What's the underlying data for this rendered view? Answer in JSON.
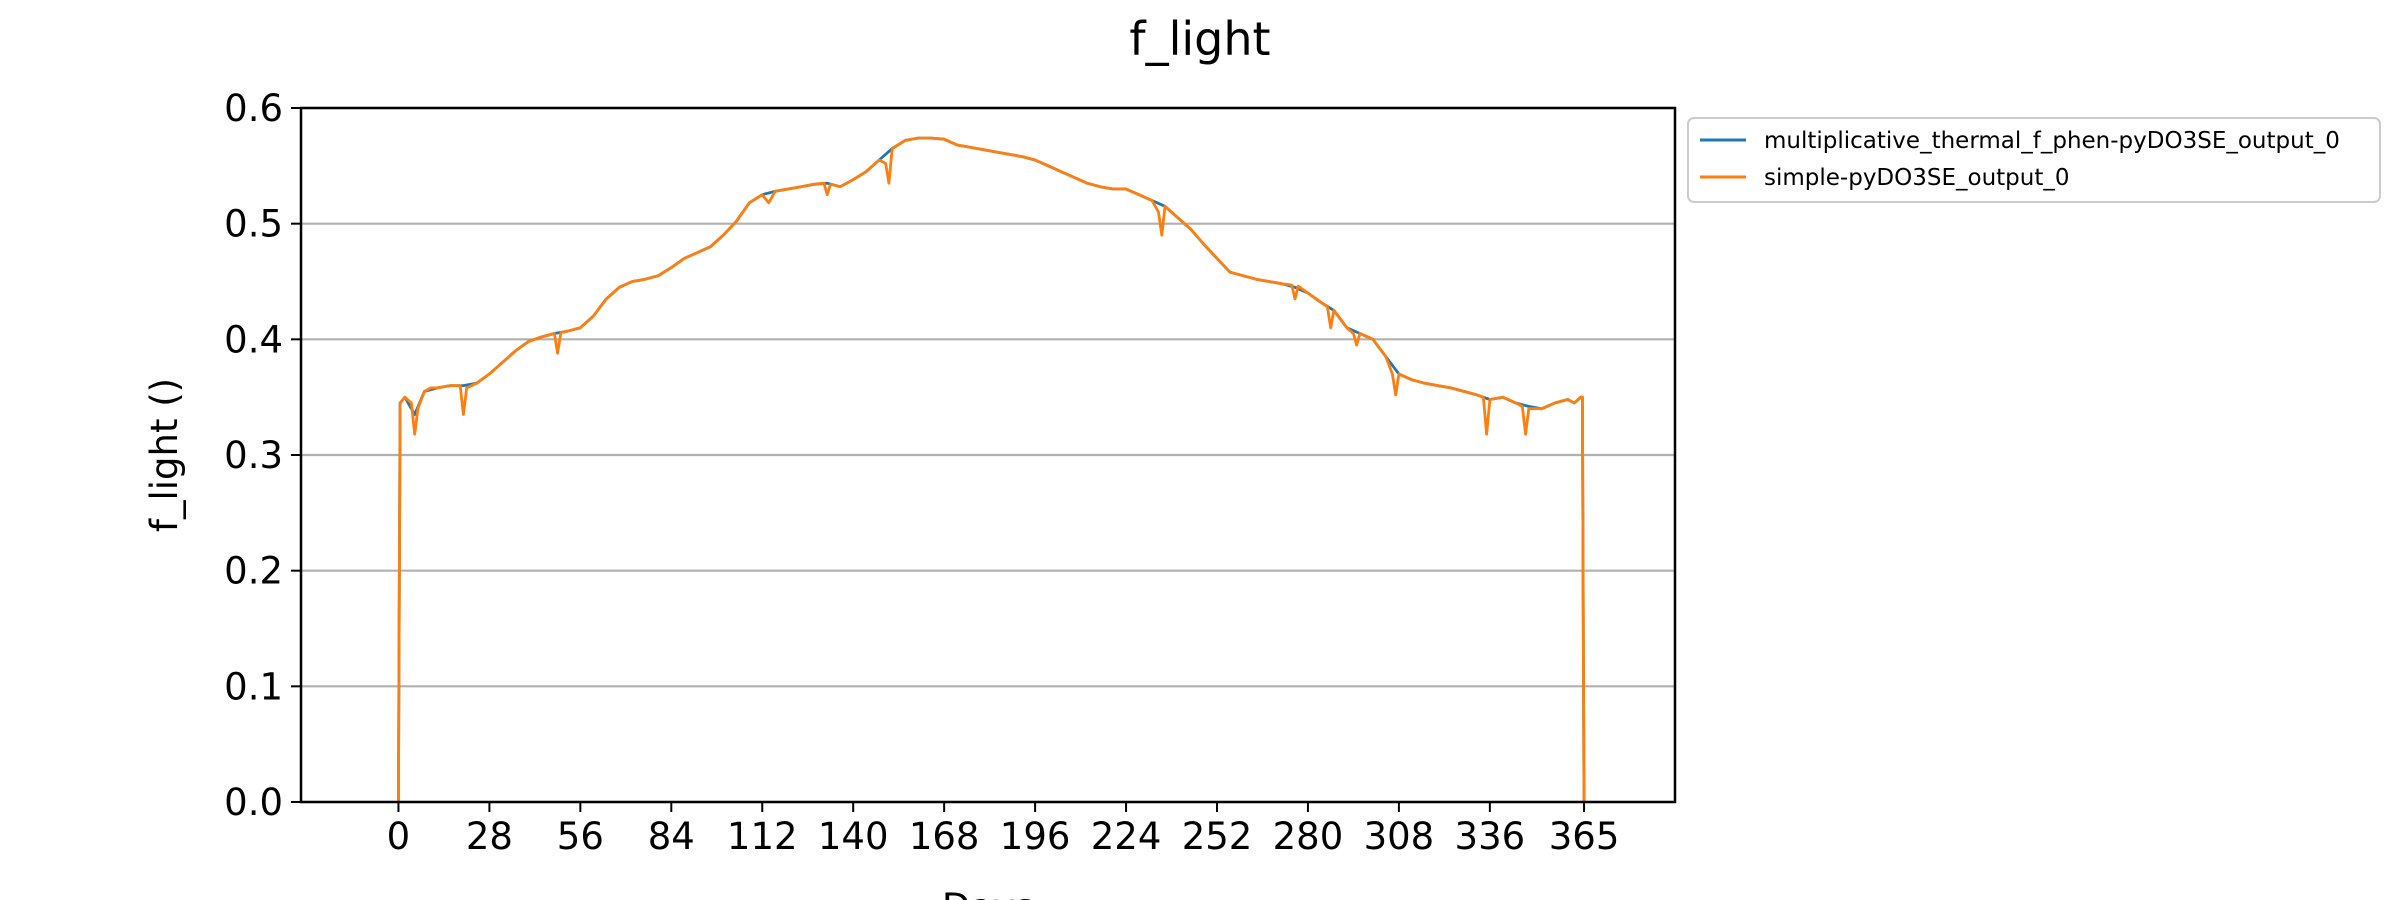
{
  "chart_data": {
    "type": "line",
    "title": "f_light",
    "xlabel": "Days",
    "ylabel": "f_light ()",
    "xlim": [
      -30,
      393
    ],
    "ylim": [
      0,
      0.6
    ],
    "xticks": [
      0,
      28,
      56,
      84,
      112,
      140,
      168,
      196,
      224,
      252,
      280,
      308,
      336,
      365
    ],
    "yticks": [
      "0.0",
      "0.1",
      "0.2",
      "0.3",
      "0.4",
      "0.5",
      "0.6"
    ],
    "grid": "horizontal",
    "legend": {
      "placement": "outside-top-right"
    },
    "colors": {
      "multiplicative": "#1f77b4",
      "simple": "#ff7f0e",
      "grid": "#b0b0b0"
    },
    "series": [
      {
        "name": "multiplicative_thermal_f_phen-pyDO3SE_output_0",
        "color": "#1f77b4",
        "x": [
          0,
          0.5,
          2,
          5,
          8,
          12,
          16,
          20,
          24,
          28,
          32,
          36,
          40,
          44,
          48,
          52,
          56,
          60,
          64,
          68,
          72,
          76,
          80,
          84,
          88,
          92,
          96,
          100,
          104,
          108,
          112,
          116,
          120,
          124,
          128,
          132,
          136,
          140,
          144,
          148,
          152,
          156,
          160,
          164,
          168,
          172,
          176,
          180,
          184,
          188,
          192,
          196,
          200,
          204,
          208,
          212,
          216,
          220,
          224,
          228,
          232,
          236,
          240,
          244,
          248,
          252,
          256,
          260,
          264,
          268,
          272,
          276,
          280,
          284,
          288,
          292,
          296,
          300,
          304,
          308,
          312,
          316,
          320,
          324,
          328,
          332,
          336,
          340,
          344,
          348,
          352,
          356,
          360,
          362,
          364,
          364.5,
          365
        ],
        "y": [
          0,
          0.345,
          0.35,
          0.335,
          0.355,
          0.358,
          0.36,
          0.36,
          0.362,
          0.37,
          0.38,
          0.39,
          0.398,
          0.402,
          0.405,
          0.407,
          0.41,
          0.42,
          0.435,
          0.445,
          0.45,
          0.452,
          0.455,
          0.462,
          0.47,
          0.475,
          0.48,
          0.49,
          0.502,
          0.518,
          0.525,
          0.528,
          0.53,
          0.532,
          0.534,
          0.535,
          0.532,
          0.538,
          0.545,
          0.555,
          0.565,
          0.572,
          0.574,
          0.574,
          0.573,
          0.568,
          0.566,
          0.564,
          0.562,
          0.56,
          0.558,
          0.555,
          0.55,
          0.545,
          0.54,
          0.535,
          0.532,
          0.53,
          0.53,
          0.525,
          0.52,
          0.515,
          0.505,
          0.495,
          0.482,
          0.47,
          0.458,
          0.455,
          0.452,
          0.45,
          0.448,
          0.445,
          0.44,
          0.432,
          0.425,
          0.41,
          0.405,
          0.4,
          0.385,
          0.37,
          0.365,
          0.362,
          0.36,
          0.358,
          0.355,
          0.352,
          0.348,
          0.35,
          0.345,
          0.342,
          0.34,
          0.345,
          0.348,
          0.345,
          0.35,
          0.35,
          0
        ]
      },
      {
        "name": "simple-pyDO3SE_output_0",
        "color": "#ff7f0e",
        "x": [
          0,
          0.5,
          2,
          4,
          5,
          6,
          8,
          10,
          12,
          16,
          19,
          20,
          21,
          24,
          28,
          32,
          36,
          40,
          44,
          48,
          49,
          50,
          52,
          56,
          58,
          60,
          64,
          68,
          72,
          76,
          80,
          84,
          88,
          92,
          96,
          100,
          104,
          108,
          112,
          114,
          116,
          120,
          124,
          128,
          131,
          132,
          133,
          136,
          140,
          144,
          148,
          150,
          151,
          152,
          156,
          160,
          164,
          168,
          172,
          176,
          180,
          184,
          188,
          192,
          196,
          200,
          204,
          208,
          212,
          216,
          220,
          224,
          228,
          232,
          234,
          235,
          236,
          240,
          244,
          248,
          252,
          256,
          260,
          264,
          268,
          272,
          275,
          276,
          277,
          280,
          284,
          286,
          287,
          288,
          292,
          294,
          295,
          296,
          300,
          304,
          306,
          307,
          308,
          312,
          316,
          320,
          324,
          328,
          332,
          334,
          335,
          336,
          340,
          344,
          346,
          347,
          348,
          352,
          356,
          360,
          362,
          364,
          364.5,
          365
        ],
        "y": [
          0,
          0.345,
          0.35,
          0.345,
          0.318,
          0.34,
          0.355,
          0.358,
          0.358,
          0.36,
          0.36,
          0.335,
          0.358,
          0.362,
          0.37,
          0.38,
          0.39,
          0.398,
          0.402,
          0.405,
          0.388,
          0.406,
          0.407,
          0.41,
          0.415,
          0.42,
          0.435,
          0.445,
          0.45,
          0.452,
          0.455,
          0.462,
          0.47,
          0.475,
          0.48,
          0.49,
          0.502,
          0.518,
          0.525,
          0.518,
          0.528,
          0.53,
          0.532,
          0.534,
          0.535,
          0.525,
          0.534,
          0.532,
          0.538,
          0.545,
          0.555,
          0.552,
          0.535,
          0.565,
          0.572,
          0.574,
          0.574,
          0.573,
          0.568,
          0.566,
          0.564,
          0.562,
          0.56,
          0.558,
          0.555,
          0.55,
          0.545,
          0.54,
          0.535,
          0.532,
          0.53,
          0.53,
          0.525,
          0.52,
          0.51,
          0.49,
          0.515,
          0.505,
          0.495,
          0.482,
          0.47,
          0.458,
          0.455,
          0.452,
          0.45,
          0.448,
          0.447,
          0.435,
          0.446,
          0.44,
          0.432,
          0.428,
          0.41,
          0.425,
          0.41,
          0.405,
          0.395,
          0.405,
          0.4,
          0.385,
          0.37,
          0.352,
          0.37,
          0.365,
          0.362,
          0.36,
          0.358,
          0.355,
          0.352,
          0.35,
          0.318,
          0.348,
          0.35,
          0.345,
          0.342,
          0.318,
          0.34,
          0.34,
          0.345,
          0.348,
          0.345,
          0.35,
          0.35,
          0
        ]
      }
    ]
  }
}
